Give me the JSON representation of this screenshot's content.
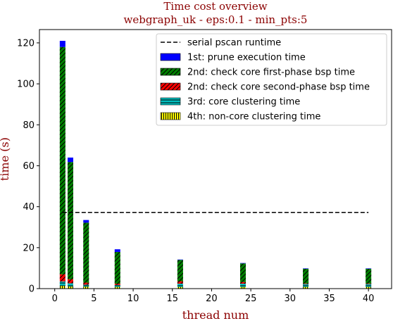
{
  "chart_data": {
    "type": "bar",
    "title": "Time cost overview",
    "subtitle": "webgraph_uk - eps:0.1 - min_pts:5",
    "xlabel": "thread num",
    "ylabel": "time (s)",
    "xlim": [
      -1.95,
      42.95
    ],
    "ylim": [
      0,
      126.5
    ],
    "xticks": [
      "0",
      "5",
      "10",
      "15",
      "20",
      "25",
      "30",
      "35",
      "40"
    ],
    "yticks": [
      "0",
      "20",
      "40",
      "60",
      "80",
      "100",
      "120"
    ],
    "x": [
      1,
      2,
      4,
      8,
      16,
      24,
      32,
      40
    ],
    "series": [
      {
        "name": "4th: non-core clustering time",
        "color": "#ffff00",
        "hatch": "vertical",
        "values": [
          1.3,
          1.0,
          0.9,
          0.8,
          0.8,
          0.8,
          0.8,
          0.8
        ]
      },
      {
        "name": "3rd: core clustering time",
        "color": "#00bfbf",
        "hatch": "horizontal",
        "values": [
          2.2,
          1.6,
          1.0,
          1.0,
          1.6,
          1.6,
          1.4,
          1.4
        ]
      },
      {
        "name": "2nd: check core second-phase bsp time",
        "color": "#ff0000",
        "hatch": "diagonal",
        "values": [
          3.5,
          2.0,
          1.0,
          0.6,
          1.2,
          0.8,
          0.3,
          0.3
        ]
      },
      {
        "name": "2nd: check core first-phase bsp time",
        "color": "#008000",
        "hatch": "diagonal",
        "values": [
          111.0,
          57.2,
          29.3,
          15.5,
          10.4,
          9.1,
          7.2,
          7.2
        ]
      },
      {
        "name": "1st: prune execution time",
        "color": "#0000ff",
        "hatch": "none",
        "values": [
          3.0,
          2.2,
          1.3,
          1.3,
          0.2,
          0.2,
          0.2,
          0.2
        ]
      }
    ],
    "reference_line": {
      "name": "serial pscan runtime",
      "value": 37.2,
      "x_range": [
        1,
        40
      ],
      "style": "dashed",
      "color": "#000000"
    },
    "legend_position": "top-right",
    "grid": false
  }
}
